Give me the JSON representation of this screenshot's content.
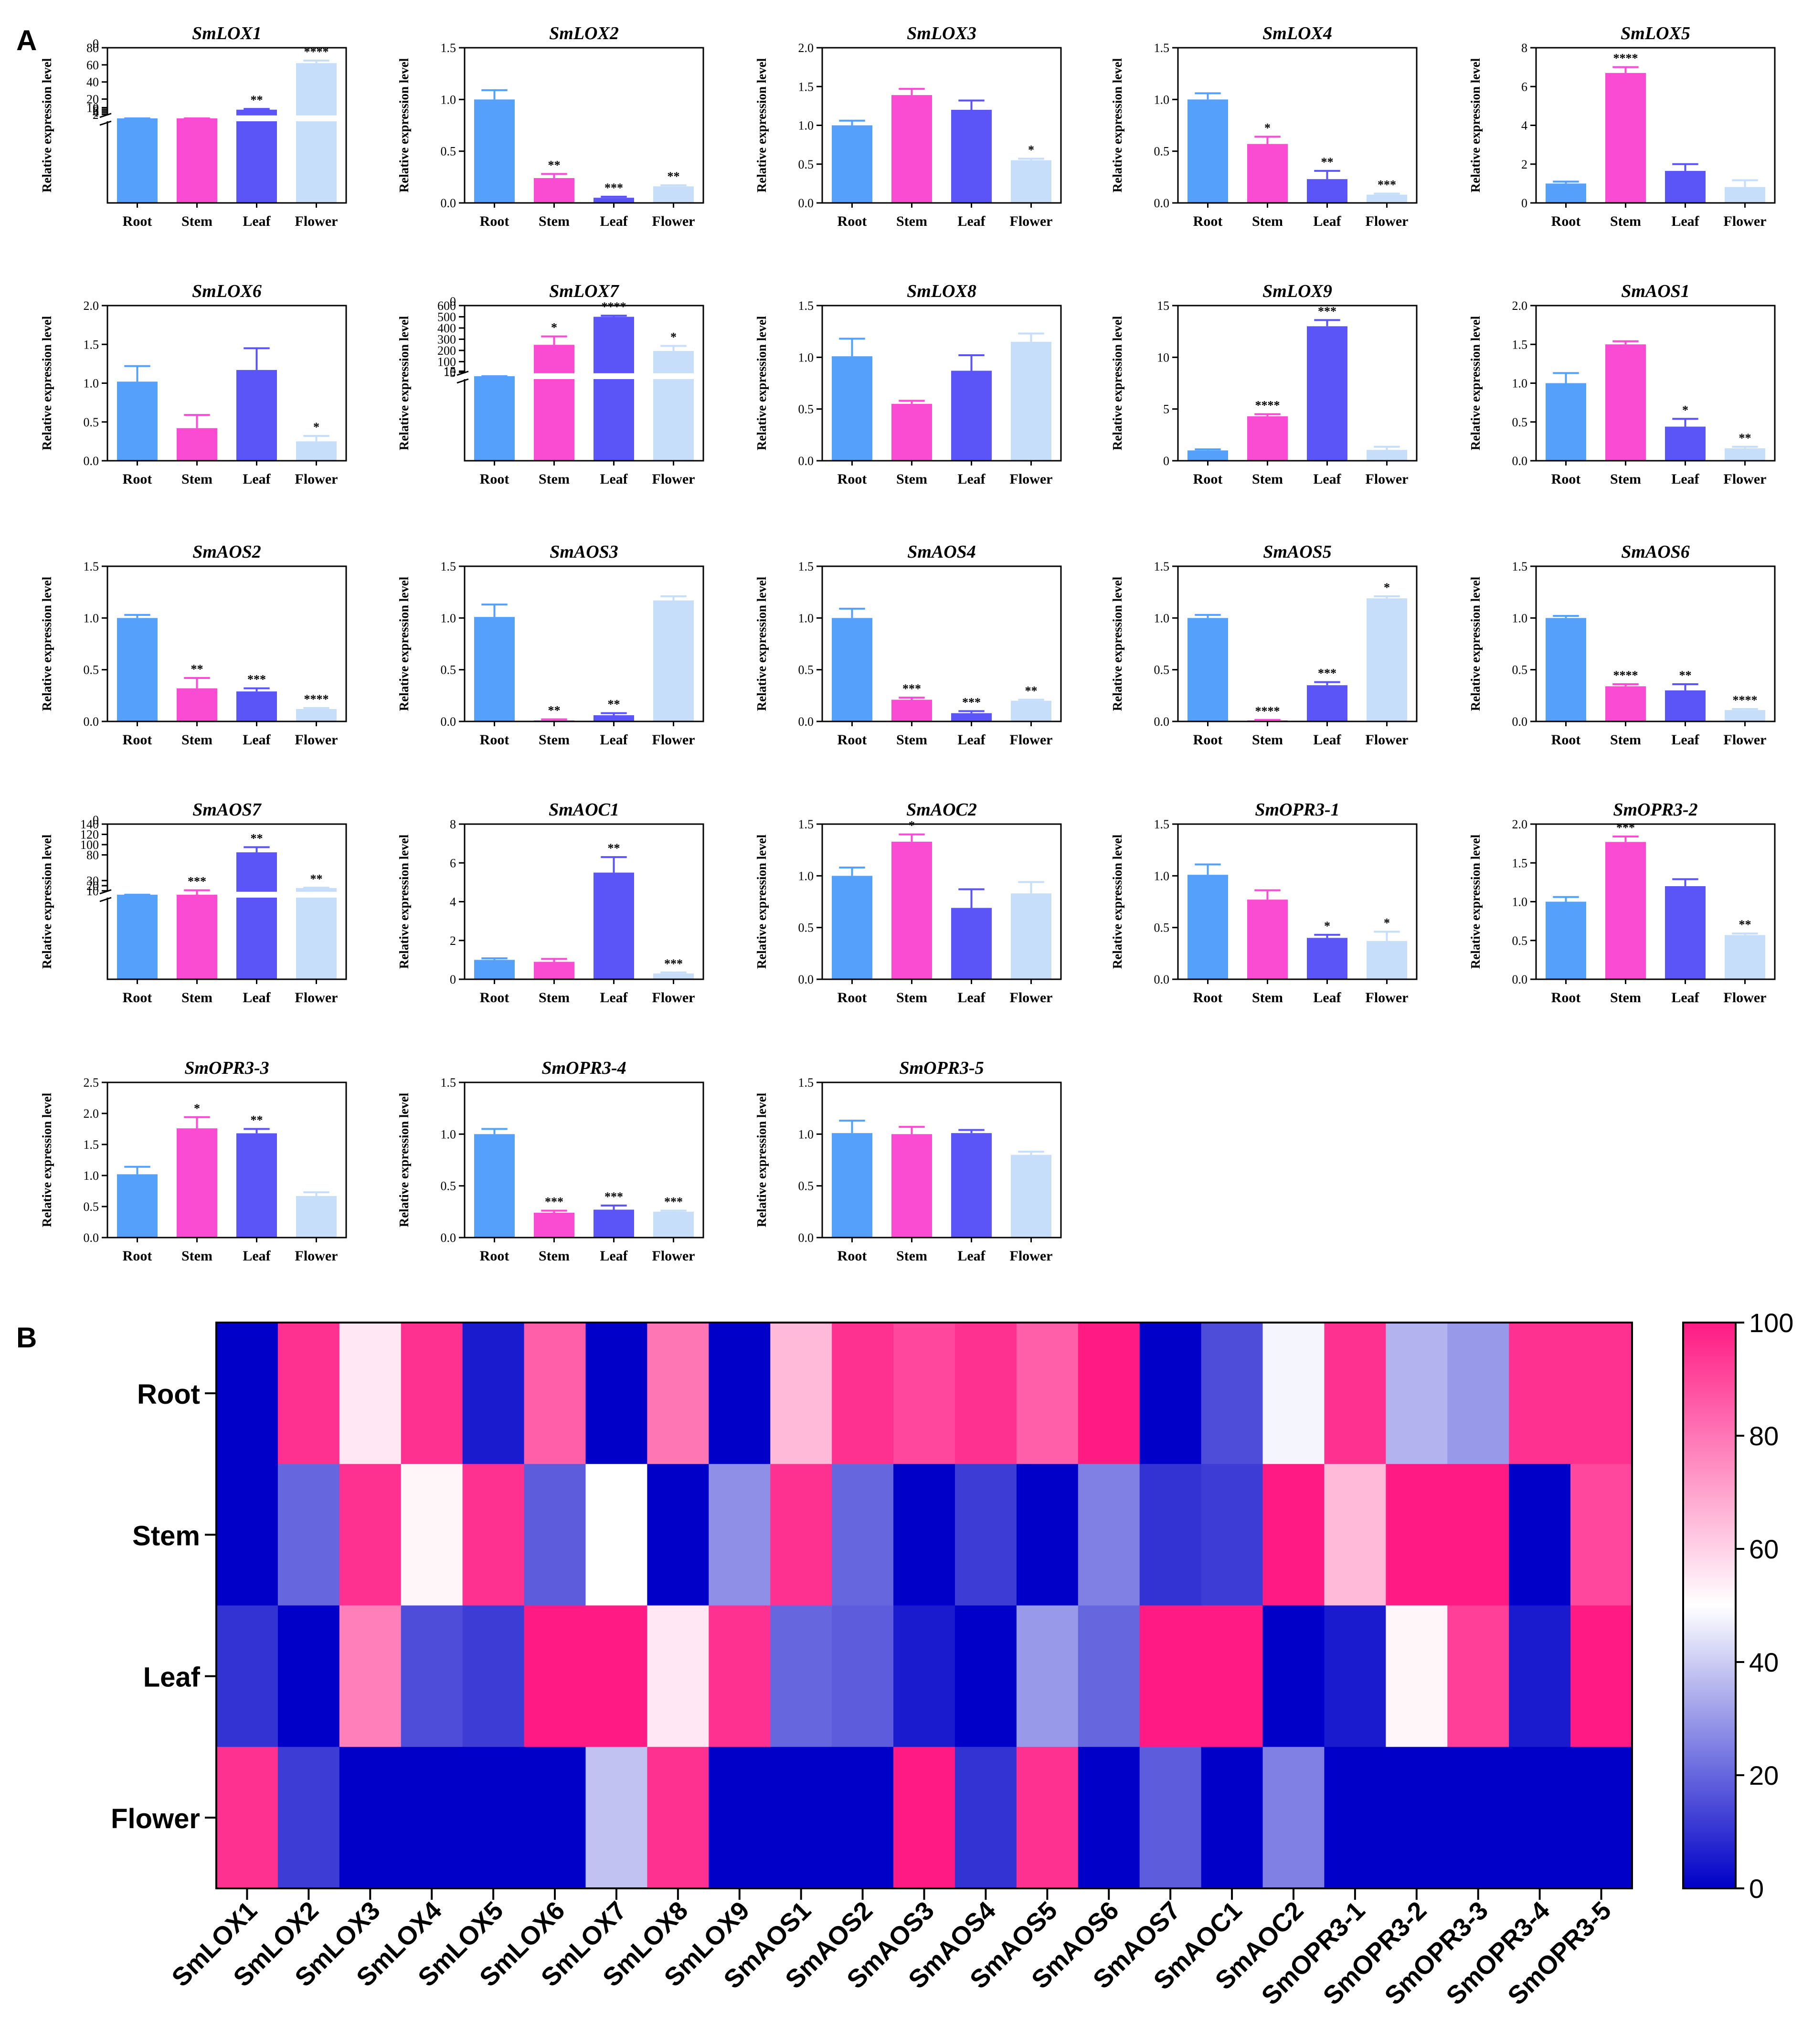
{
  "panels": {
    "a": "A",
    "b": "B"
  },
  "colors": {
    "Root": "#55A0FA",
    "Stem": "#FA4CD2",
    "Leaf": "#5B55F8",
    "Flower": "#C6DEFA",
    "axis": "#000000",
    "heat_low": "#0000C8",
    "heat_mid": "#FFFFFF",
    "heat_high": "#FF1A84"
  },
  "chart_data": [
    {
      "type": "bar",
      "panel": "A",
      "ylabel": "Relative expression level",
      "categories": [
        "Root",
        "Stem",
        "Leaf",
        "Flower"
      ],
      "subplots": [
        {
          "title": "SmLOX1",
          "broken": true,
          "yticks": [
            "0",
            "2",
            "4",
            "6",
            "8",
            "10",
            "20",
            "40",
            "60",
            "80"
          ],
          "values": [
            1.0,
            0.7,
            7.6,
            62
          ],
          "errors": [
            0.1,
            0.1,
            0.9,
            3
          ],
          "stars": [
            "",
            "",
            "**",
            "****"
          ]
        },
        {
          "title": "SmLOX2",
          "ylim": [
            0,
            1.5
          ],
          "yticks": [
            "0.0",
            "0.5",
            "1.0",
            "1.5"
          ],
          "values": [
            1.0,
            0.24,
            0.05,
            0.16
          ],
          "errors": [
            0.09,
            0.04,
            0.01,
            0.01
          ],
          "stars": [
            "",
            "**",
            "***",
            "**"
          ]
        },
        {
          "title": "SmLOX3",
          "ylim": [
            0,
            2.0
          ],
          "yticks": [
            "0.0",
            "0.5",
            "1.0",
            "1.5",
            "2.0"
          ],
          "values": [
            1.0,
            1.39,
            1.2,
            0.55
          ],
          "errors": [
            0.06,
            0.08,
            0.12,
            0.02
          ],
          "stars": [
            "",
            "",
            "",
            "*"
          ]
        },
        {
          "title": "SmLOX4",
          "ylim": [
            0,
            1.5
          ],
          "yticks": [
            "0.0",
            "0.5",
            "1.0",
            "1.5"
          ],
          "values": [
            1.0,
            0.57,
            0.23,
            0.08
          ],
          "errors": [
            0.06,
            0.07,
            0.08,
            0.01
          ],
          "stars": [
            "",
            "*",
            "**",
            "***"
          ]
        },
        {
          "title": "SmLOX5",
          "ylim": [
            0,
            8
          ],
          "yticks": [
            "0",
            "2",
            "4",
            "6",
            "8"
          ],
          "values": [
            1.0,
            6.7,
            1.65,
            0.82
          ],
          "errors": [
            0.1,
            0.3,
            0.35,
            0.35
          ],
          "stars": [
            "",
            "****",
            "",
            ""
          ]
        },
        {
          "title": "SmLOX6",
          "ylim": [
            0,
            2.0
          ],
          "yticks": [
            "0.0",
            "0.5",
            "1.0",
            "1.5",
            "2.0"
          ],
          "values": [
            1.02,
            0.42,
            1.17,
            0.25
          ],
          "errors": [
            0.2,
            0.17,
            0.28,
            0.07
          ],
          "stars": [
            "",
            "",
            "",
            "*"
          ]
        },
        {
          "title": "SmLOX7",
          "broken": true,
          "yticks": [
            "0",
            "5",
            "10",
            "15",
            "100",
            "200",
            "300",
            "400",
            "500",
            "600"
          ],
          "values": [
            1.0,
            250,
            500,
            195
          ],
          "errors": [
            0.3,
            75,
            10,
            45
          ],
          "stars": [
            "",
            "*",
            "****",
            "*"
          ]
        },
        {
          "title": "SmLOX8",
          "ylim": [
            0,
            1.5
          ],
          "yticks": [
            "0.0",
            "0.5",
            "1.0",
            "1.5"
          ],
          "values": [
            1.01,
            0.55,
            0.87,
            1.15
          ],
          "errors": [
            0.17,
            0.03,
            0.15,
            0.08
          ],
          "stars": [
            "",
            "",
            "",
            ""
          ]
        },
        {
          "title": "SmLOX9",
          "ylim": [
            0,
            15
          ],
          "yticks": [
            "0",
            "5",
            "10",
            "15"
          ],
          "values": [
            1.0,
            4.3,
            13.0,
            1.05
          ],
          "errors": [
            0.1,
            0.2,
            0.6,
            0.3
          ],
          "stars": [
            "",
            "****",
            "***",
            ""
          ]
        },
        {
          "title": "SmAOS1",
          "ylim": [
            0,
            2.0
          ],
          "yticks": [
            "0.0",
            "0.5",
            "1.0",
            "1.5",
            "2.0"
          ],
          "values": [
            1.0,
            1.5,
            0.44,
            0.16
          ],
          "errors": [
            0.13,
            0.04,
            0.1,
            0.02
          ],
          "stars": [
            "",
            "",
            "*",
            "**"
          ]
        },
        {
          "title": "SmAOS2",
          "ylim": [
            0,
            1.5
          ],
          "yticks": [
            "0.0",
            "0.5",
            "1.0",
            "1.5"
          ],
          "values": [
            1.0,
            0.32,
            0.29,
            0.12
          ],
          "errors": [
            0.03,
            0.1,
            0.03,
            0.01
          ],
          "stars": [
            "",
            "**",
            "***",
            "****"
          ]
        },
        {
          "title": "SmAOS3",
          "ylim": [
            0,
            1.5
          ],
          "yticks": [
            "0.0",
            "0.5",
            "1.0",
            "1.5"
          ],
          "values": [
            1.01,
            0.01,
            0.06,
            1.17
          ],
          "errors": [
            0.12,
            0.01,
            0.02,
            0.04
          ],
          "stars": [
            "",
            "**",
            "**",
            ""
          ]
        },
        {
          "title": "SmAOS4",
          "ylim": [
            0,
            1.5
          ],
          "yticks": [
            "0.0",
            "0.5",
            "1.0",
            "1.5"
          ],
          "values": [
            1.0,
            0.21,
            0.08,
            0.2
          ],
          "errors": [
            0.09,
            0.02,
            0.02,
            0.01
          ],
          "stars": [
            "",
            "***",
            "***",
            "**"
          ]
        },
        {
          "title": "SmAOS5",
          "ylim": [
            0,
            1.5
          ],
          "yticks": [
            "0.0",
            "0.5",
            "1.0",
            "1.5"
          ],
          "values": [
            1.0,
            0.01,
            0.35,
            1.19
          ],
          "errors": [
            0.03,
            0.005,
            0.03,
            0.02
          ],
          "stars": [
            "",
            "****",
            "***",
            "*"
          ]
        },
        {
          "title": "SmAOS6",
          "ylim": [
            0,
            1.5
          ],
          "yticks": [
            "0.0",
            "0.5",
            "1.0",
            "1.5"
          ],
          "values": [
            1.0,
            0.34,
            0.3,
            0.11
          ],
          "errors": [
            0.02,
            0.02,
            0.06,
            0.01
          ],
          "stars": [
            "",
            "****",
            "**",
            "****"
          ]
        },
        {
          "title": "SmAOS7",
          "broken": true,
          "yticks": [
            "0",
            "10",
            "20",
            "30",
            "80",
            "100",
            "120",
            "140"
          ],
          "values": [
            1.0,
            9.5,
            85,
            15.5
          ],
          "errors": [
            0.2,
            1.5,
            10,
            0.5
          ],
          "stars": [
            "",
            "***",
            "**",
            "**"
          ]
        },
        {
          "title": "SmAOC1",
          "ylim": [
            0,
            8
          ],
          "yticks": [
            "0",
            "2",
            "4",
            "6",
            "8"
          ],
          "values": [
            1.0,
            0.9,
            5.5,
            0.3
          ],
          "errors": [
            0.08,
            0.15,
            0.8,
            0.05
          ],
          "stars": [
            "",
            "",
            "**",
            "***"
          ]
        },
        {
          "title": "SmAOC2",
          "ylim": [
            0,
            1.5
          ],
          "yticks": [
            "0.0",
            "0.5",
            "1.0",
            "1.5"
          ],
          "values": [
            1.0,
            1.33,
            0.69,
            0.83
          ],
          "errors": [
            0.08,
            0.07,
            0.18,
            0.11
          ],
          "stars": [
            "",
            "*",
            "",
            ""
          ]
        },
        {
          "title": "SmOPR3-1",
          "ylim": [
            0,
            1.5
          ],
          "yticks": [
            "0.0",
            "0.5",
            "1.0",
            "1.5"
          ],
          "values": [
            1.01,
            0.77,
            0.4,
            0.37
          ],
          "errors": [
            0.1,
            0.09,
            0.03,
            0.09
          ],
          "stars": [
            "",
            "",
            "*",
            "*"
          ]
        },
        {
          "title": "SmOPR3-2",
          "ylim": [
            0,
            2.0
          ],
          "yticks": [
            "0.0",
            "0.5",
            "1.0",
            "1.5",
            "2.0"
          ],
          "values": [
            1.0,
            1.77,
            1.2,
            0.57
          ],
          "errors": [
            0.06,
            0.07,
            0.09,
            0.02
          ],
          "stars": [
            "",
            "***",
            "",
            "**"
          ]
        },
        {
          "title": "SmOPR3-3",
          "ylim": [
            0,
            2.5
          ],
          "yticks": [
            "0.0",
            "0.5",
            "1.0",
            "1.5",
            "2.0",
            "2.5"
          ],
          "values": [
            1.02,
            1.76,
            1.68,
            0.67
          ],
          "errors": [
            0.12,
            0.18,
            0.07,
            0.06
          ],
          "stars": [
            "",
            "*",
            "**",
            ""
          ]
        },
        {
          "title": "SmOPR3-4",
          "ylim": [
            0,
            1.5
          ],
          "yticks": [
            "0.0",
            "0.5",
            "1.0",
            "1.5"
          ],
          "values": [
            1.0,
            0.24,
            0.27,
            0.25
          ],
          "errors": [
            0.05,
            0.02,
            0.04,
            0.01
          ],
          "stars": [
            "",
            "***",
            "***",
            "***"
          ]
        },
        {
          "title": "SmOPR3-5",
          "ylim": [
            0,
            1.5
          ],
          "yticks": [
            "0.0",
            "0.5",
            "1.0",
            "1.5"
          ],
          "values": [
            1.01,
            1.0,
            1.01,
            0.8
          ],
          "errors": [
            0.12,
            0.07,
            0.03,
            0.03
          ],
          "stars": [
            "",
            "",
            "",
            ""
          ]
        }
      ]
    },
    {
      "type": "heatmap",
      "panel": "B",
      "rows": [
        "Root",
        "Stem",
        "Leaf",
        "Flower"
      ],
      "columns": [
        "SmLOX1",
        "SmLOX2",
        "SmLOX3",
        "SmLOX4",
        "SmLOX5",
        "SmLOX6",
        "SmLOX7",
        "SmLOX8",
        "SmLOX9",
        "SmAOS1",
        "SmAOS2",
        "SmAOS3",
        "SmAOS4",
        "SmAOS5",
        "SmAOS6",
        "SmAOS7",
        "SmAOC1",
        "SmAOC2",
        "SmOPR3-1",
        "SmOPR3-2",
        "SmOPR3-3",
        "SmOPR3-4",
        "SmOPR3-5"
      ],
      "values": [
        [
          0,
          95,
          55,
          95,
          5,
          85,
          0,
          80,
          0,
          65,
          95,
          90,
          95,
          85,
          100,
          0,
          15,
          48,
          95,
          35,
          30,
          95,
          95
        ],
        [
          0,
          20,
          95,
          52,
          95,
          18,
          50,
          0,
          28,
          95,
          20,
          0,
          12,
          0,
          25,
          10,
          12,
          100,
          65,
          100,
          100,
          0,
          90
        ],
        [
          10,
          0,
          78,
          15,
          12,
          100,
          100,
          55,
          95,
          20,
          18,
          5,
          0,
          30,
          20,
          100,
          100,
          0,
          5,
          52,
          92,
          5,
          100
        ],
        [
          95,
          12,
          0,
          0,
          0,
          0,
          38,
          95,
          0,
          0,
          0,
          100,
          10,
          95,
          0,
          18,
          0,
          25,
          0,
          0,
          0,
          0,
          0
        ]
      ],
      "colorbar": {
        "min": 0,
        "max": 100,
        "ticks": [
          "0",
          "20",
          "40",
          "60",
          "80",
          "100"
        ]
      }
    }
  ]
}
